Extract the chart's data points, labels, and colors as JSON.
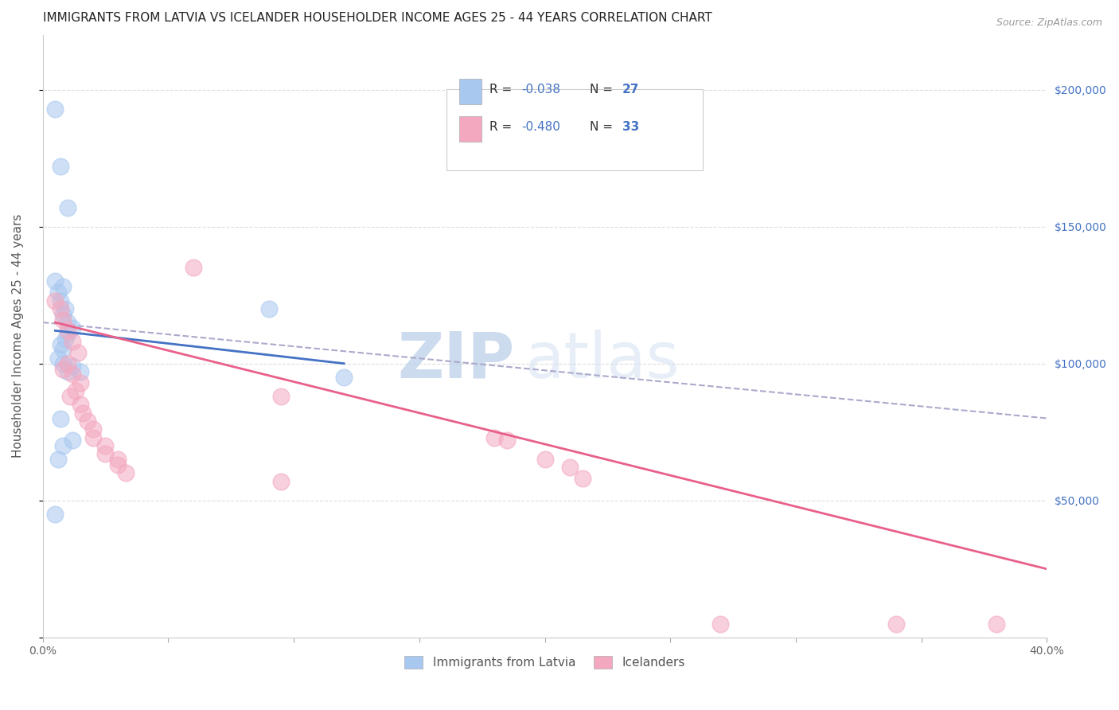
{
  "title": "IMMIGRANTS FROM LATVIA VS ICELANDER HOUSEHOLDER INCOME AGES 25 - 44 YEARS CORRELATION CHART",
  "source": "Source: ZipAtlas.com",
  "ylabel": "Householder Income Ages 25 - 44 years",
  "xlim": [
    0.0,
    0.4
  ],
  "ylim": [
    0,
    220000
  ],
  "xticks": [
    0.0,
    0.05,
    0.1,
    0.15,
    0.2,
    0.25,
    0.3,
    0.35,
    0.4
  ],
  "blue_color": "#A8C8F0",
  "pink_color": "#F4A8C0",
  "blue_line_color": "#4472C4",
  "pink_line_color": "#E8608A",
  "dashed_line_color": "#AAAACC",
  "watermark_zip": "ZIP",
  "watermark_atlas": "atlas",
  "grid_color": "#DDDDDD",
  "background_color": "#FFFFFF",
  "title_fontsize": 11,
  "axis_label_fontsize": 11,
  "tick_fontsize": 10,
  "legend_color": "#4472C4",
  "blue_scatter_x": [
    0.005,
    0.007,
    0.01,
    0.005,
    0.008,
    0.006,
    0.007,
    0.009,
    0.008,
    0.01,
    0.012,
    0.01,
    0.009,
    0.007,
    0.008,
    0.006,
    0.008,
    0.012,
    0.015,
    0.01,
    0.007,
    0.012,
    0.006,
    0.005,
    0.12,
    0.09,
    0.008
  ],
  "blue_scatter_y": [
    193000,
    172000,
    157000,
    130000,
    128000,
    126000,
    123000,
    120000,
    118000,
    115000,
    113000,
    111000,
    109000,
    107000,
    105000,
    102000,
    100000,
    99000,
    97000,
    97000,
    80000,
    72000,
    65000,
    45000,
    95000,
    120000,
    70000
  ],
  "pink_scatter_x": [
    0.005,
    0.007,
    0.008,
    0.01,
    0.012,
    0.014,
    0.01,
    0.008,
    0.012,
    0.015,
    0.013,
    0.011,
    0.015,
    0.016,
    0.018,
    0.02,
    0.02,
    0.025,
    0.025,
    0.03,
    0.03,
    0.033,
    0.06,
    0.095,
    0.095,
    0.18,
    0.2,
    0.21,
    0.215,
    0.185,
    0.34,
    0.38,
    0.27
  ],
  "pink_scatter_y": [
    123000,
    120000,
    116000,
    112000,
    108000,
    104000,
    100000,
    98000,
    96000,
    93000,
    90000,
    88000,
    85000,
    82000,
    79000,
    76000,
    73000,
    70000,
    67000,
    65000,
    63000,
    60000,
    135000,
    88000,
    57000,
    73000,
    65000,
    62000,
    58000,
    72000,
    5000,
    5000,
    5000
  ],
  "blue_line_x": [
    0.005,
    0.12
  ],
  "blue_line_y": [
    112000,
    100000
  ],
  "pink_line_x": [
    0.005,
    0.4
  ],
  "pink_line_y": [
    115000,
    25000
  ],
  "dashed_line_x": [
    0.0,
    0.4
  ],
  "dashed_line_y": [
    115000,
    80000
  ]
}
